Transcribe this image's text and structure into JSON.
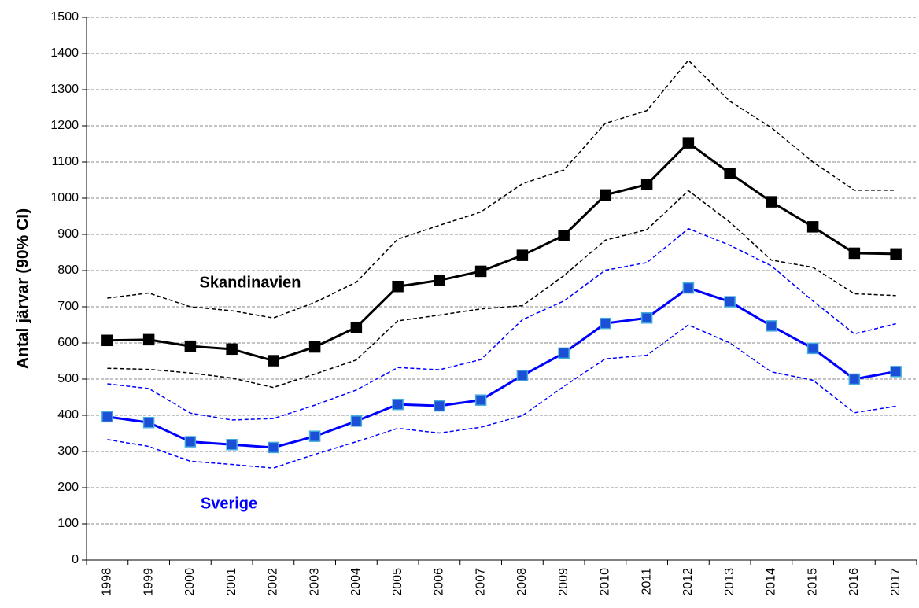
{
  "chart_data": {
    "type": "line",
    "y_label": "Antal järvar (90% CI)",
    "categories": [
      "1998",
      "1999",
      "2000",
      "2001",
      "2002",
      "2003",
      "2004",
      "2005",
      "2006",
      "2007",
      "2008",
      "2009",
      "2010",
      "2011",
      "2012",
      "2013",
      "2014",
      "2015",
      "2016",
      "2017"
    ],
    "series": [
      {
        "name": "Skandinavien",
        "color": "#000000",
        "dashed": false,
        "marker": "square",
        "values": [
          607,
          609,
          591,
          583,
          551,
          589,
          643,
          756,
          773,
          798,
          842,
          897,
          1009,
          1038,
          1153,
          1069,
          990,
          921,
          848,
          846
        ]
      },
      {
        "color": "#000000",
        "dashed": true,
        "values": [
          724,
          738,
          700,
          689,
          669,
          712,
          768,
          887,
          925,
          962,
          1040,
          1078,
          1207,
          1242,
          1381,
          1268,
          1195,
          1100,
          1022,
          1022
        ]
      },
      {
        "color": "#000000",
        "dashed": true,
        "values": [
          530,
          527,
          517,
          503,
          477,
          514,
          553,
          661,
          677,
          694,
          703,
          786,
          884,
          913,
          1021,
          934,
          829,
          809,
          736,
          731
        ]
      },
      {
        "name": "Sverige",
        "color": "#0000ff",
        "dashed": false,
        "marker": "square",
        "values": [
          396,
          380,
          327,
          319,
          311,
          342,
          384,
          430,
          426,
          442,
          510,
          572,
          654,
          669,
          752,
          714,
          647,
          585,
          500,
          521
        ]
      },
      {
        "color": "#0000ff",
        "dashed": true,
        "values": [
          487,
          474,
          406,
          387,
          391,
          428,
          470,
          532,
          526,
          554,
          664,
          716,
          801,
          822,
          916,
          870,
          813,
          716,
          625,
          653
        ]
      },
      {
        "color": "#0000ff",
        "dashed": true,
        "values": [
          333,
          314,
          273,
          264,
          254,
          292,
          327,
          364,
          351,
          367,
          399,
          480,
          556,
          566,
          650,
          600,
          520,
          497,
          407,
          425
        ]
      }
    ],
    "ylim": [
      0,
      1500
    ],
    "yticks": [
      0,
      100,
      200,
      300,
      400,
      500,
      600,
      700,
      800,
      900,
      1000,
      1100,
      1200,
      1300,
      1400,
      1500
    ],
    "grid": true
  }
}
